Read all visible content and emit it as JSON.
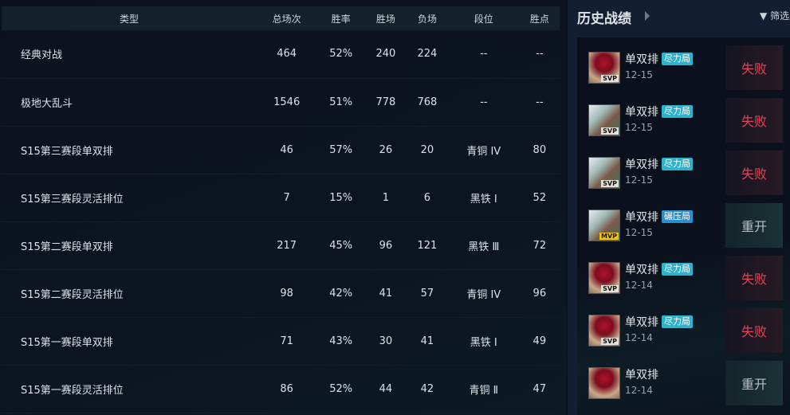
{
  "table": {
    "headers": [
      "类型",
      "总场次",
      "胜率",
      "胜场",
      "负场",
      "段位",
      "胜点"
    ],
    "rows": [
      [
        "经典对战",
        "464",
        "52%",
        "240",
        "224",
        "--",
        "--"
      ],
      [
        "极地大乱斗",
        "1546",
        "51%",
        "778",
        "768",
        "--",
        "--"
      ],
      [
        "S15第三赛段单双排",
        "46",
        "57%",
        "26",
        "20",
        "青铜 IV",
        "80"
      ],
      [
        "S15第三赛段灵活排位",
        "7",
        "15%",
        "1",
        "6",
        "黑铁 Ⅰ",
        "52"
      ],
      [
        "S15第二赛段单双排",
        "217",
        "45%",
        "96",
        "121",
        "黑铁 Ⅲ",
        "72"
      ],
      [
        "S15第二赛段灵活排位",
        "98",
        "42%",
        "41",
        "57",
        "青铜 IV",
        "96"
      ],
      [
        "S15第一赛段单双排",
        "71",
        "43%",
        "30",
        "41",
        "黑铁 Ⅰ",
        "49"
      ],
      [
        "S15第一赛段灵活排位",
        "86",
        "52%",
        "44",
        "42",
        "青铜 Ⅱ",
        "47"
      ]
    ]
  },
  "history": {
    "title": "历史战绩",
    "filter_label": "筛选",
    "items": [
      {
        "mode": "单双排",
        "tag": "尽力局",
        "date": "12-15",
        "result": "失败",
        "badge": "SVP",
        "champ": "red"
      },
      {
        "mode": "单双排",
        "tag": "尽力局",
        "date": "12-15",
        "result": "失败",
        "badge": "SVP",
        "champ": "white"
      },
      {
        "mode": "单双排",
        "tag": "尽力局",
        "date": "12-15",
        "result": "失败",
        "badge": "SVP",
        "champ": "white"
      },
      {
        "mode": "单双排",
        "tag": "碾压局",
        "date": "12-15",
        "result": "重开",
        "badge": "MVP",
        "champ": "white"
      },
      {
        "mode": "单双排",
        "tag": "尽力局",
        "date": "12-14",
        "result": "失败",
        "badge": "SVP",
        "champ": "red"
      },
      {
        "mode": "单双排",
        "tag": "尽力局",
        "date": "12-14",
        "result": "失败",
        "badge": "SVP",
        "champ": "red"
      },
      {
        "mode": "单双排",
        "tag": "",
        "date": "12-14",
        "result": "重开",
        "badge": "",
        "champ": "red"
      }
    ]
  },
  "colors": {
    "lose": "#e0455a",
    "remake": "#b8c0c4",
    "tag": "#2eb3cf",
    "tag_crush": "#2a8fd0",
    "mvp": "#f2c500"
  }
}
